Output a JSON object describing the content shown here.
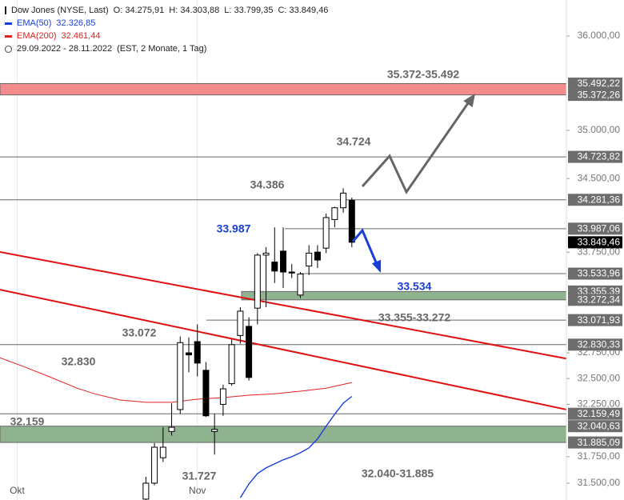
{
  "chart_data": {
    "type": "candlestick",
    "header": {
      "title": "Dow Jones (NYSE, Last)",
      "quote": [
        "O: 34.275,91",
        "H: 34.303,88",
        "L: 33.799,35",
        "C: 33.849,46"
      ],
      "range": "29.09.2022 - 28.11.2022",
      "range_note": "(EST, 2 Monate, 1 Tag)"
    },
    "categories": [
      null,
      null,
      "Okt",
      null,
      null,
      null,
      null,
      null,
      null,
      null,
      null,
      null,
      null,
      null,
      null,
      null,
      null,
      null,
      null,
      null,
      null,
      null,
      null,
      "Nov",
      null,
      null,
      null,
      null,
      null,
      null,
      null,
      null,
      null,
      null,
      null,
      null,
      null,
      null,
      null,
      null,
      null,
      null
    ],
    "candles": {
      "open": [
        null,
        null,
        null,
        null,
        null,
        null,
        null,
        null,
        null,
        null,
        null,
        null,
        null,
        null,
        null,
        null,
        null,
        31350,
        31500,
        31740,
        31990,
        32200,
        32750,
        32860,
        32580,
        31990,
        32250,
        32450,
        32920,
        33010,
        33190,
        33720,
        33650,
        33760,
        33550,
        33320,
        33610,
        33750,
        33790,
        34080,
        34200,
        34275.91
      ],
      "high": [
        null,
        null,
        null,
        null,
        null,
        null,
        null,
        null,
        null,
        null,
        null,
        null,
        null,
        null,
        null,
        null,
        null,
        31560,
        31880,
        32030,
        32260,
        32910,
        32900,
        33030,
        32660,
        32160,
        32440,
        32880,
        33200,
        33100,
        33740,
        33800,
        34000,
        34000,
        33630,
        33550,
        33820,
        33820,
        34140,
        34210,
        34400,
        34303.88
      ],
      "low": [
        null,
        null,
        null,
        null,
        null,
        null,
        null,
        null,
        null,
        null,
        null,
        null,
        null,
        null,
        null,
        null,
        null,
        31300,
        31480,
        31700,
        31950,
        32160,
        32560,
        32520,
        32130,
        31770,
        32140,
        32430,
        32840,
        32480,
        33030,
        33200,
        33440,
        33390,
        33490,
        33290,
        33520,
        33590,
        33740,
        34000,
        34150,
        33799.35
      ],
      "close": [
        null,
        null,
        null,
        null,
        null,
        null,
        null,
        null,
        null,
        null,
        null,
        null,
        null,
        null,
        null,
        null,
        null,
        31500,
        31840,
        31840,
        32030,
        32850,
        32730,
        32650,
        32140,
        32010,
        32400,
        32830,
        33160,
        32510,
        33720,
        33740,
        33560,
        33550,
        33540,
        33530,
        33740,
        33670,
        34100,
        34200,
        34350,
        33849.46
      ],
      "up_color": "#ffffff",
      "down_color": "#000000"
    },
    "series": [
      {
        "name": "EMA(50)",
        "value_label": "32.326,85",
        "color": "#1a3fd6",
        "x": [
          28,
          29,
          30,
          31,
          32,
          33,
          34,
          35,
          36,
          37,
          38,
          39,
          40,
          41
        ],
        "values": [
          31364,
          31492,
          31590,
          31644,
          31682,
          31720,
          31750,
          31788,
          31834,
          31918,
          32040,
          32156,
          32261,
          32326.85
        ]
      },
      {
        "name": "EMA(200)",
        "value_label": "32.461,44",
        "color": "#e02020",
        "x": [
          0,
          3,
          6,
          9,
          11,
          14,
          17,
          20,
          23,
          26,
          29,
          32,
          35,
          38,
          41
        ],
        "values": [
          32702,
          32608,
          32509,
          32406,
          32352,
          32292,
          32270,
          32270,
          32300,
          32315,
          32338,
          32352,
          32377,
          32406,
          32461.44
        ]
      }
    ],
    "trendlines": [
      {
        "color": "#e01010",
        "x": [
          0,
          66
        ],
        "values": [
          33751,
          32694
        ]
      },
      {
        "color": "#e01010",
        "x": [
          0,
          66
        ],
        "values": [
          33374,
          32200
        ]
      }
    ],
    "levels": [
      {
        "value": 35492.22,
        "label": "35.492,22",
        "color": "#6d6d6d"
      },
      {
        "value": 35372.26,
        "label": "35.372,26",
        "color": "#6d6d6d"
      },
      {
        "value": 34723.82,
        "label": "34.723,82",
        "color": "#6d6d6d"
      },
      {
        "value": 34281.36,
        "label": "34.281,36",
        "color": "#6d6d6d"
      },
      {
        "value": 33987.06,
        "label": "33.987,06",
        "color": "#6d6d6d"
      },
      {
        "value": 33849.46,
        "label": "33.849,46",
        "color": "#000000"
      },
      {
        "value": 33533.96,
        "label": "33.533,96",
        "color": "#6d6d6d"
      },
      {
        "value": 33355.39,
        "label": "33.355,39",
        "color": "#6d6d6d"
      },
      {
        "value": 33272.34,
        "label": "33.272,34",
        "color": "#6d6d6d"
      },
      {
        "value": 33071.93,
        "label": "33.071,93",
        "color": "#6d6d6d"
      },
      {
        "value": 32830.33,
        "label": "32.830,33",
        "color": "#6d6d6d"
      },
      {
        "value": 32159.49,
        "label": "32.159,49",
        "color": "#6d6d6d"
      },
      {
        "value": 32040.63,
        "label": "32.040,63",
        "color": "#6d6d6d"
      },
      {
        "value": 31885.09,
        "label": "31.885,09",
        "color": "#6d6d6d"
      }
    ],
    "zones": [
      {
        "color": "#f58c8c"
      },
      {
        "color": "#8fb28f"
      },
      {
        "color": "#8fb28f"
      }
    ],
    "annotations": [
      {
        "text": "35.372-35.492",
        "color": "#666666"
      },
      {
        "text": "34.724",
        "color": "#666666"
      },
      {
        "text": "34.386",
        "color": "#666666"
      },
      {
        "text": "33.987",
        "color": "#1a3fd6"
      },
      {
        "text": "33.534",
        "color": "#1a3fd6"
      },
      {
        "text": "33.355-33.272",
        "color": "#666666"
      },
      {
        "text": "33.072",
        "color": "#666666"
      },
      {
        "text": "32.830",
        "color": "#666666"
      },
      {
        "text": "32.159",
        "color": "#666666"
      },
      {
        "text": "31.727",
        "color": "#666666"
      },
      {
        "text": "32.040-31.885",
        "color": "#666666"
      }
    ],
    "xlim": [
      0,
      66
    ],
    "ylim": [
      31342,
      36389
    ],
    "log_scale": true,
    "yticks": [
      {
        "value": 31500,
        "label": "31.500,00"
      },
      {
        "value": 31750,
        "label": "31.750,00"
      },
      {
        "value": 32250,
        "label": "32.250,00"
      },
      {
        "value": 32500,
        "label": "32.500,00"
      },
      {
        "value": 32750,
        "label": "32.750,00"
      },
      {
        "value": 33750,
        "label": "33.750,00"
      },
      {
        "value": 34500,
        "label": "34.500,00"
      },
      {
        "value": 35000,
        "label": "35.000,00"
      },
      {
        "value": 36000,
        "label": "36.000,00"
      }
    ]
  }
}
